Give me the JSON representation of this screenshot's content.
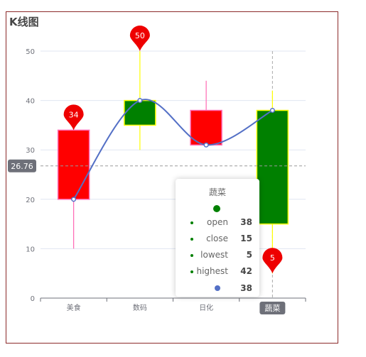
{
  "title": "K线图",
  "colors": {
    "up_fill": "#ff0000",
    "down_fill": "#008000",
    "up_border": "#ff69b4",
    "down_border": "#ffff00",
    "line": "#5470c6",
    "markpoint": "#ee0000",
    "markline": "#999999"
  },
  "chart_data": {
    "type": "candlestick",
    "categories": [
      "美食",
      "数码",
      "日化",
      "蔬菜"
    ],
    "ylim": [
      0,
      55
    ],
    "yticks": [
      0,
      10,
      20,
      30,
      40,
      50
    ],
    "candles": [
      {
        "open": 20,
        "close": 34,
        "lowest": 10,
        "highest": 38
      },
      {
        "open": 40,
        "close": 35,
        "lowest": 30,
        "highest": 50
      },
      {
        "open": 31,
        "close": 38,
        "lowest": 33,
        "highest": 44
      },
      {
        "open": 38,
        "close": 15,
        "lowest": 5,
        "highest": 42
      }
    ],
    "line_values": [
      20,
      40,
      31,
      38
    ],
    "mark_points": [
      {
        "category": "美食",
        "value": 34,
        "label": "34"
      },
      {
        "category": "数码",
        "value": 50,
        "label": "50"
      },
      {
        "category": "蔬菜",
        "value": 5,
        "label": "5"
      }
    ],
    "mark_line": {
      "value": 26.76,
      "label": "26.76"
    },
    "highlighted_category": "蔬菜"
  },
  "tooltip": {
    "title": "蔬菜",
    "rows": [
      {
        "label": "open",
        "value": "38"
      },
      {
        "label": "close",
        "value": "15"
      },
      {
        "label": "lowest",
        "value": "5"
      },
      {
        "label": "highest",
        "value": "42"
      }
    ],
    "line_value": "38"
  }
}
